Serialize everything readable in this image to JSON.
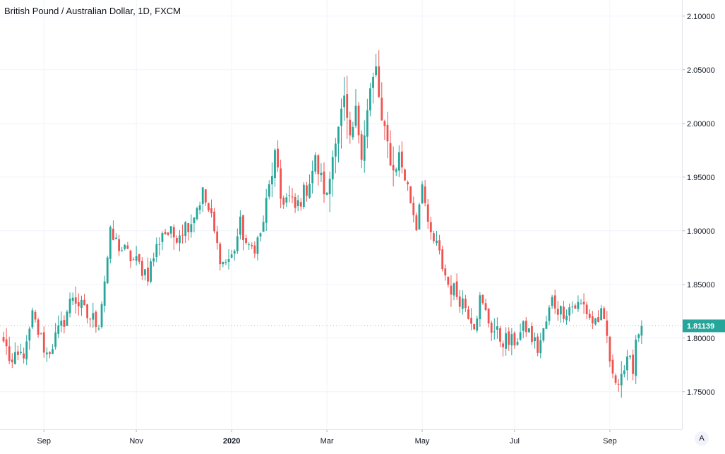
{
  "header": {
    "title": "British Pound / Australian Dollar, 1D, FXCM"
  },
  "auto_scale_label": "A",
  "chart_data": {
    "type": "candlestick",
    "title": "British Pound / Australian Dollar, 1D, FXCM",
    "symbol": "GBPAUD",
    "interval": "1D",
    "source": "FXCM",
    "last_price": "1.81139",
    "ylim": [
      1.715,
      2.115
    ],
    "y_ticks": [
      "2.10000",
      "2.05000",
      "2.00000",
      "1.95000",
      "1.90000",
      "1.85000",
      "1.80000",
      "1.75000"
    ],
    "x_ticks": [
      {
        "label": "Sep",
        "index": 14
      },
      {
        "label": "Nov",
        "index": 46
      },
      {
        "label": "2020",
        "index": 79
      },
      {
        "label": "Mar",
        "index": 112
      },
      {
        "label": "May",
        "index": 145
      },
      {
        "label": "Jul",
        "index": 177
      },
      {
        "label": "Sep",
        "index": 210
      }
    ],
    "grid": true,
    "colors": {
      "up": "#26a69a",
      "down": "#ef5350",
      "grid": "#f0f3fa",
      "axis": "#e0e3eb",
      "text": "#131722",
      "price_label": "#26a69a"
    },
    "anchors": [
      [
        0,
        1.797
      ],
      [
        3,
        1.775
      ],
      [
        8,
        1.79
      ],
      [
        10,
        1.82
      ],
      [
        15,
        1.785
      ],
      [
        20,
        1.81
      ],
      [
        24,
        1.84
      ],
      [
        29,
        1.82
      ],
      [
        33,
        1.815
      ],
      [
        37,
        1.895
      ],
      [
        42,
        1.88
      ],
      [
        46,
        1.87
      ],
      [
        50,
        1.86
      ],
      [
        55,
        1.9
      ],
      [
        59,
        1.895
      ],
      [
        65,
        1.91
      ],
      [
        69,
        1.935
      ],
      [
        72,
        1.91
      ],
      [
        74,
        1.885
      ],
      [
        76,
        1.87
      ],
      [
        79,
        1.875
      ],
      [
        82,
        1.905
      ],
      [
        85,
        1.88
      ],
      [
        89,
        1.895
      ],
      [
        91,
        1.925
      ],
      [
        94,
        1.97
      ],
      [
        96,
        1.93
      ],
      [
        99,
        1.93
      ],
      [
        101,
        1.92
      ],
      [
        105,
        1.94
      ],
      [
        108,
        1.965
      ],
      [
        112,
        1.93
      ],
      [
        115,
        1.99
      ],
      [
        118,
        2.02
      ],
      [
        120,
        1.98
      ],
      [
        122,
        2.01
      ],
      [
        124,
        1.975
      ],
      [
        127,
        2.03
      ],
      [
        129,
        2.05
      ],
      [
        131,
        2.0
      ],
      [
        133,
        1.98
      ],
      [
        135,
        1.955
      ],
      [
        137,
        1.97
      ],
      [
        140,
        1.94
      ],
      [
        143,
        1.905
      ],
      [
        145,
        1.95
      ],
      [
        147,
        1.9
      ],
      [
        150,
        1.885
      ],
      [
        154,
        1.85
      ],
      [
        159,
        1.835
      ],
      [
        163,
        1.815
      ],
      [
        165,
        1.835
      ],
      [
        169,
        1.81
      ],
      [
        172,
        1.8
      ],
      [
        176,
        1.795
      ],
      [
        181,
        1.81
      ],
      [
        185,
        1.79
      ],
      [
        187,
        1.805
      ],
      [
        190,
        1.835
      ],
      [
        193,
        1.825
      ],
      [
        197,
        1.83
      ],
      [
        201,
        1.83
      ],
      [
        204,
        1.815
      ],
      [
        207,
        1.82
      ],
      [
        209,
        1.8
      ],
      [
        211,
        1.76
      ],
      [
        213,
        1.765
      ],
      [
        216,
        1.775
      ],
      [
        218,
        1.775
      ],
      [
        219,
        1.8
      ],
      [
        221,
        1.81139
      ]
    ]
  }
}
